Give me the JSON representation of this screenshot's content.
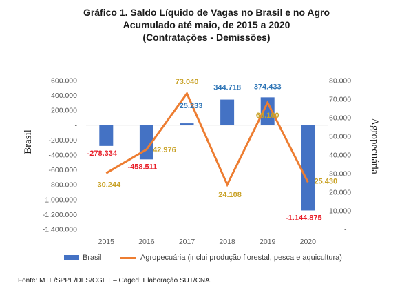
{
  "title_lines": [
    "Gráfico 1. Saldo Líquido de Vagas no Brasil e no Agro",
    "Acumulado até maio, de 2015 a 2020",
    "(Contratações - Demissões)"
  ],
  "source": "Fonte: MTE/SPPE/DES/CGET – Caged; Elaboração SUT/CNA.",
  "colors": {
    "bar": "#4472c4",
    "line": "#ed7d31",
    "neg_label": "#e8202a",
    "pos_label": "#2e75b6",
    "line_label": "#c9a227"
  },
  "chart_data": {
    "type": "bar+line",
    "categories": [
      "2015",
      "2016",
      "2017",
      "2018",
      "2019",
      "2020"
    ],
    "series": [
      {
        "name": "Brasil",
        "type": "bar",
        "axis": "left",
        "values": [
          -278334,
          -458511,
          25233,
          344718,
          374433,
          -1144875
        ],
        "labels": [
          "-278.334",
          "-458.511",
          "25.233",
          "344.718",
          "374.433",
          "-1.144.875"
        ]
      },
      {
        "name": "Agropecuária (inclui produção florestal, pesca e aquicultura)",
        "type": "line",
        "axis": "right",
        "values": [
          30244,
          42976,
          73040,
          24108,
          68160,
          25430
        ],
        "labels": [
          "30.244",
          "42.976",
          "73.040",
          "24.108",
          "68.160",
          "25.430"
        ]
      }
    ],
    "y_left": {
      "label": "Brasil",
      "range": [
        -1400000,
        600000
      ],
      "ticks": [
        600000,
        400000,
        200000,
        0,
        -200000,
        -400000,
        -600000,
        -800000,
        -1000000,
        -1200000,
        -1400000
      ],
      "tick_labels": [
        "600.000",
        "400.000",
        "200.000",
        "-",
        "-200.000",
        "-400.000",
        "-600.000",
        "-800.000",
        "-1.000.000",
        "-1.200.000",
        "-1.400.000"
      ]
    },
    "y_right": {
      "label": "Agropecuária",
      "range": [
        0,
        80000
      ],
      "ticks": [
        80000,
        70000,
        60000,
        50000,
        40000,
        30000,
        20000,
        10000,
        0
      ],
      "tick_labels": [
        "80.000",
        "70.000",
        "60.000",
        "50.000",
        "40.000",
        "30.000",
        "20.000",
        "10.000",
        "-"
      ]
    },
    "grid": false,
    "legend": "bottom"
  }
}
